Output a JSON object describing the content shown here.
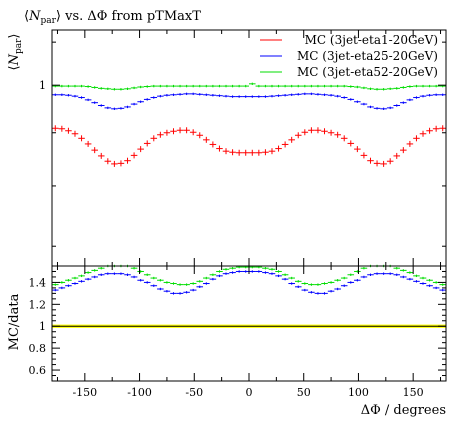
{
  "title": "⟨N_par⟩ vs. ΔΦ from pTMaxT",
  "chart_data": [
    {
      "panel": "main",
      "type": "scatter",
      "title": "⟨N_par⟩ vs. ΔΦ from pTMaxT",
      "ylabel": "⟨N_par⟩",
      "xlabel": "",
      "xlim": [
        -180,
        180
      ],
      "y_scale": "log",
      "ylim": [
        0.67,
        1.13
      ],
      "y_tick_labels": [
        "1"
      ],
      "grid": false,
      "legend_position": "top-right",
      "x": [
        -177,
        -171,
        -165,
        -159,
        -153,
        -147,
        -141,
        -135,
        -129,
        -123,
        -117,
        -111,
        -105,
        -99,
        -93,
        -87,
        -81,
        -75,
        -69,
        -63,
        -57,
        -51,
        -45,
        -39,
        -33,
        -27,
        -21,
        -15,
        -9,
        -3,
        3,
        9,
        15,
        21,
        27,
        33,
        39,
        45,
        51,
        57,
        63,
        69,
        75,
        81,
        87,
        93,
        99,
        105,
        111,
        117,
        123,
        129,
        135,
        141,
        147,
        153,
        159,
        165,
        171,
        177
      ],
      "series": [
        {
          "name": "MC (3jet-eta1-20GeV)",
          "color": "#ff0000",
          "values": [
            0.909,
            0.908,
            0.904,
            0.898,
            0.889,
            0.878,
            0.866,
            0.855,
            0.845,
            0.84,
            0.841,
            0.846,
            0.856,
            0.868,
            0.879,
            0.889,
            0.896,
            0.9,
            0.903,
            0.905,
            0.905,
            0.901,
            0.895,
            0.886,
            0.877,
            0.869,
            0.864,
            0.862,
            0.861,
            0.861,
            0.861,
            0.861,
            0.862,
            0.864,
            0.869,
            0.877,
            0.886,
            0.895,
            0.901,
            0.905,
            0.905,
            0.903,
            0.9,
            0.896,
            0.889,
            0.879,
            0.868,
            0.856,
            0.846,
            0.841,
            0.84,
            0.845,
            0.855,
            0.866,
            0.878,
            0.889,
            0.898,
            0.904,
            0.908,
            0.909
          ]
        },
        {
          "name": "MC (3jet-eta25-20GeV)",
          "color": "#0000ff",
          "values": [
            0.979,
            0.979,
            0.978,
            0.976,
            0.973,
            0.968,
            0.962,
            0.956,
            0.951,
            0.949,
            0.95,
            0.953,
            0.959,
            0.964,
            0.969,
            0.973,
            0.976,
            0.978,
            0.979,
            0.98,
            0.981,
            0.981,
            0.98,
            0.979,
            0.978,
            0.977,
            0.976,
            0.975,
            0.975,
            0.975,
            0.975,
            0.975,
            0.975,
            0.976,
            0.977,
            0.978,
            0.979,
            0.98,
            0.981,
            0.981,
            0.98,
            0.979,
            0.978,
            0.976,
            0.973,
            0.969,
            0.964,
            0.959,
            0.953,
            0.95,
            0.949,
            0.951,
            0.956,
            0.962,
            0.968,
            0.973,
            0.976,
            0.978,
            0.979,
            0.979
          ]
        },
        {
          "name": "MC (3jet-eta52-20GeV)",
          "color": "#00dd00",
          "values": [
            0.998,
            0.998,
            0.998,
            0.998,
            0.998,
            0.997,
            0.995,
            0.993,
            0.992,
            0.991,
            0.991,
            0.992,
            0.994,
            0.996,
            0.997,
            0.998,
            0.998,
            0.998,
            0.998,
            0.998,
            0.998,
            0.998,
            0.998,
            0.998,
            0.998,
            0.998,
            0.998,
            0.998,
            0.998,
            0.998,
            1.003,
            0.998,
            0.998,
            0.998,
            0.998,
            0.998,
            0.998,
            0.998,
            0.998,
            0.998,
            0.998,
            0.998,
            0.998,
            0.998,
            0.998,
            0.997,
            0.996,
            0.994,
            0.992,
            0.991,
            0.991,
            0.992,
            0.993,
            0.995,
            0.997,
            0.998,
            0.998,
            0.998,
            0.998,
            0.998
          ]
        }
      ]
    },
    {
      "panel": "ratio",
      "type": "scatter",
      "ylabel": "MC/data",
      "xlabel": "ΔΦ / degrees",
      "xlim": [
        -180,
        180
      ],
      "ylim": [
        0.5,
        1.55
      ],
      "x_tick_labels": [
        "-150",
        "-100",
        "-50",
        "0",
        "50",
        "100",
        "150"
      ],
      "y_tick_labels": [
        "0.6",
        "0.8",
        "1",
        "1.2",
        "1.4"
      ],
      "reference_line": 1,
      "reference_band": [
        0.985,
        1.015
      ],
      "band_color": "#ffff00",
      "x": [
        -177,
        -171,
        -165,
        -159,
        -153,
        -147,
        -141,
        -135,
        -129,
        -123,
        -117,
        -111,
        -105,
        -99,
        -93,
        -87,
        -81,
        -75,
        -69,
        -63,
        -57,
        -51,
        -45,
        -39,
        -33,
        -27,
        -21,
        -15,
        -9,
        -3,
        3,
        9,
        15,
        21,
        27,
        33,
        39,
        45,
        51,
        57,
        63,
        69,
        75,
        81,
        87,
        93,
        99,
        105,
        111,
        117,
        123,
        129,
        135,
        141,
        147,
        153,
        159,
        165,
        171,
        177
      ],
      "series": [
        {
          "name": "MC (3jet-eta25-20GeV)",
          "color": "#0000ff",
          "values": [
            1.33,
            1.35,
            1.37,
            1.39,
            1.41,
            1.43,
            1.45,
            1.47,
            1.48,
            1.48,
            1.48,
            1.47,
            1.45,
            1.42,
            1.4,
            1.37,
            1.34,
            1.32,
            1.3,
            1.3,
            1.31,
            1.33,
            1.36,
            1.39,
            1.43,
            1.46,
            1.48,
            1.49,
            1.5,
            1.5,
            1.5,
            1.5,
            1.49,
            1.48,
            1.46,
            1.43,
            1.39,
            1.36,
            1.33,
            1.31,
            1.3,
            1.3,
            1.32,
            1.34,
            1.37,
            1.4,
            1.42,
            1.45,
            1.47,
            1.48,
            1.48,
            1.48,
            1.47,
            1.45,
            1.43,
            1.41,
            1.39,
            1.37,
            1.35,
            1.33
          ]
        },
        {
          "name": "MC (3jet-eta52-20GeV)",
          "color": "#00dd00",
          "values": [
            1.38,
            1.4,
            1.42,
            1.44,
            1.46,
            1.49,
            1.51,
            1.53,
            1.55,
            1.55,
            1.55,
            1.55,
            1.53,
            1.5,
            1.47,
            1.44,
            1.42,
            1.4,
            1.39,
            1.38,
            1.38,
            1.39,
            1.41,
            1.44,
            1.47,
            1.5,
            1.52,
            1.53,
            1.54,
            1.54,
            1.54,
            1.54,
            1.53,
            1.52,
            1.5,
            1.47,
            1.44,
            1.41,
            1.39,
            1.38,
            1.38,
            1.39,
            1.4,
            1.42,
            1.44,
            1.47,
            1.5,
            1.53,
            1.55,
            1.55,
            1.55,
            1.55,
            1.53,
            1.51,
            1.49,
            1.46,
            1.44,
            1.42,
            1.4,
            1.38
          ]
        }
      ]
    }
  ]
}
